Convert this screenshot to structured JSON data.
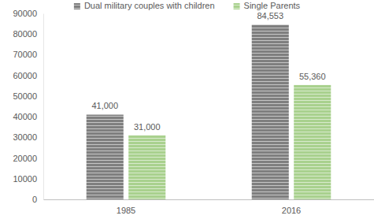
{
  "chart_data": {
    "type": "bar",
    "categories": [
      "1985",
      "2016"
    ],
    "series": [
      {
        "name": "Dual military couples with children",
        "color": "#7f7f7f",
        "values": [
          41000,
          84553
        ],
        "value_labels": [
          "41,000",
          "84,553"
        ]
      },
      {
        "name": "Single Parents",
        "color": "#a9d18e",
        "values": [
          31000,
          55360
        ],
        "value_labels": [
          "31,000",
          "55,360"
        ]
      }
    ],
    "ylim": [
      0,
      90000
    ],
    "yticks": [
      0,
      10000,
      20000,
      30000,
      40000,
      50000,
      60000,
      70000,
      80000,
      90000
    ],
    "grid": false,
    "legend": "top",
    "data_labels": true
  }
}
